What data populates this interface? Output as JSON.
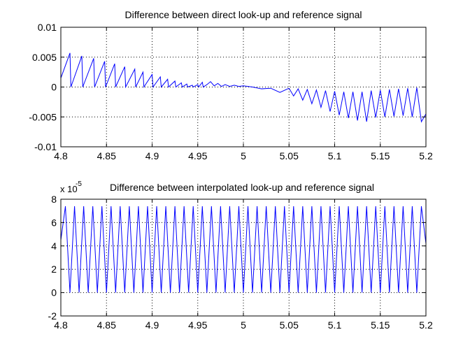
{
  "chart_data": [
    {
      "type": "line",
      "title": "Difference between direct look-up and reference signal",
      "xlabel": "",
      "ylabel": "",
      "xlim": [
        4.8,
        5.2
      ],
      "ylim": [
        -0.01,
        0.01
      ],
      "xticks": [
        4.8,
        4.85,
        4.9,
        4.95,
        5,
        5.05,
        5.1,
        5.15,
        5.2
      ],
      "xtick_labels": [
        "4.8",
        "4.85",
        "4.9",
        "4.95",
        "5",
        "5.05",
        "5.1",
        "5.15",
        "5.2"
      ],
      "yticks": [
        -0.01,
        -0.005,
        0,
        0.005,
        0.01
      ],
      "ytick_labels": [
        "-0.01",
        "-0.005",
        "0",
        "0.005",
        "0.01"
      ],
      "y_exponent_label": "",
      "grid": "dotted",
      "line_color": "#0000ff",
      "series": [
        {
          "x": [
            4.8,
            4.81,
            4.811,
            4.823,
            4.824,
            4.836,
            4.837,
            4.848,
            4.849,
            4.859,
            4.86,
            4.87,
            4.871,
            4.881,
            4.882,
            4.89,
            4.891,
            4.9,
            4.901,
            4.909,
            4.91,
            4.917,
            4.918,
            4.925,
            4.926,
            4.932,
            4.933,
            4.938,
            4.939,
            4.944,
            4.945,
            4.95,
            4.951,
            4.955,
            4.956,
            4.96,
            4.964,
            4.968,
            4.972,
            4.976,
            4.98,
            4.985,
            4.99,
            4.995,
            5.0,
            5.01,
            5.02,
            5.03,
            5.04,
            5.05,
            5.055,
            5.06,
            5.065,
            5.07,
            5.075,
            5.08,
            5.085,
            5.09,
            5.095,
            5.1,
            5.105,
            5.11,
            5.115,
            5.12,
            5.125,
            5.13,
            5.135,
            5.14,
            5.145,
            5.15,
            5.155,
            5.16,
            5.165,
            5.17,
            5.175,
            5.18,
            5.185,
            5.19,
            5.195,
            5.2
          ],
          "y": [
            0.0015,
            0.0057,
            0.0,
            0.0052,
            0.0,
            0.0048,
            0.0,
            0.0043,
            0.0,
            0.0039,
            0.0,
            0.0034,
            0.0,
            0.003,
            0.0,
            0.0025,
            0.0,
            0.0021,
            0.0,
            0.0017,
            0.0,
            0.0013,
            0.0,
            0.001,
            0.0,
            0.0007,
            0.0,
            0.0005,
            0.0,
            0.0003,
            0.0,
            0.0004,
            0.0,
            0.0008,
            0.0,
            0.0004,
            0.0009,
            0.0002,
            0.0006,
            0.0001,
            0.0004,
            0.0001,
            0.0003,
            0.0001,
            0.0002,
            0.0,
            -0.0003,
            -0.0002,
            -0.0009,
            -0.0002,
            -0.0015,
            -0.0003,
            -0.0022,
            -0.0004,
            -0.0028,
            -0.0005,
            -0.0034,
            -0.0006,
            -0.0041,
            -0.0007,
            -0.0047,
            -0.0008,
            -0.0052,
            -0.0008,
            -0.0056,
            -0.0008,
            -0.0058,
            -0.0006,
            -0.0051,
            -0.0005,
            -0.005,
            -0.0004,
            -0.0049,
            -0.0003,
            -0.0048,
            -0.0002,
            -0.005,
            -0.0001,
            -0.0058,
            -0.0045
          ]
        }
      ]
    },
    {
      "type": "line",
      "title": "Difference between interpolated look-up and reference signal",
      "xlabel": "",
      "ylabel": "",
      "xlim": [
        4.8,
        5.2
      ],
      "ylim": [
        -2,
        8
      ],
      "xticks": [
        4.8,
        4.85,
        4.9,
        4.95,
        5,
        5.05,
        5.1,
        5.15,
        5.2
      ],
      "xtick_labels": [
        "4.8",
        "4.85",
        "4.9",
        "4.95",
        "5",
        "5.05",
        "5.1",
        "5.15",
        "5.2"
      ],
      "yticks": [
        -2,
        0,
        2,
        4,
        6,
        8
      ],
      "ytick_labels": [
        "-2",
        "0",
        "2",
        "4",
        "6",
        "8"
      ],
      "y_exponent_label": "x 10",
      "y_exponent_power": "-5",
      "grid": "dotted",
      "line_color": "#0000ff",
      "series": [
        {
          "x": [
            4.8,
            4.805,
            4.81,
            4.815,
            4.82,
            4.825,
            4.83,
            4.835,
            4.84,
            4.845,
            4.85,
            4.855,
            4.86,
            4.865,
            4.87,
            4.875,
            4.88,
            4.885,
            4.89,
            4.895,
            4.9,
            4.905,
            4.91,
            4.915,
            4.92,
            4.925,
            4.93,
            4.935,
            4.94,
            4.945,
            4.95,
            4.955,
            4.96,
            4.965,
            4.97,
            4.975,
            4.98,
            4.985,
            4.99,
            4.995,
            5.0,
            5.005,
            5.01,
            5.015,
            5.02,
            5.025,
            5.03,
            5.035,
            5.04,
            5.045,
            5.05,
            5.055,
            5.06,
            5.065,
            5.07,
            5.075,
            5.08,
            5.085,
            5.09,
            5.095,
            5.1,
            5.105,
            5.11,
            5.115,
            5.12,
            5.125,
            5.13,
            5.135,
            5.14,
            5.145,
            5.15,
            5.155,
            5.16,
            5.165,
            5.17,
            5.175,
            5.18,
            5.185,
            5.19,
            5.195,
            5.2
          ],
          "y": [
            4.5,
            7.4,
            0.0,
            7.4,
            0.0,
            7.4,
            0.0,
            7.4,
            0.0,
            7.4,
            0.0,
            7.4,
            0.0,
            7.4,
            0.0,
            7.4,
            0.0,
            7.4,
            0.0,
            7.4,
            0.0,
            7.4,
            0.0,
            7.4,
            0.0,
            7.4,
            0.0,
            7.4,
            0.0,
            7.4,
            0.0,
            7.4,
            0.0,
            7.4,
            0.0,
            7.4,
            0.0,
            7.4,
            0.0,
            7.4,
            0.0,
            7.4,
            0.0,
            7.4,
            0.0,
            7.4,
            0.0,
            7.4,
            0.0,
            7.4,
            0.0,
            7.4,
            0.0,
            7.4,
            0.0,
            7.4,
            0.0,
            7.4,
            0.0,
            7.4,
            0.0,
            7.4,
            0.0,
            7.4,
            0.0,
            7.4,
            0.0,
            7.4,
            0.0,
            7.4,
            0.0,
            7.4,
            0.0,
            7.4,
            0.0,
            7.4,
            0.0,
            7.4,
            0.0,
            7.4,
            4.2
          ]
        }
      ]
    }
  ]
}
